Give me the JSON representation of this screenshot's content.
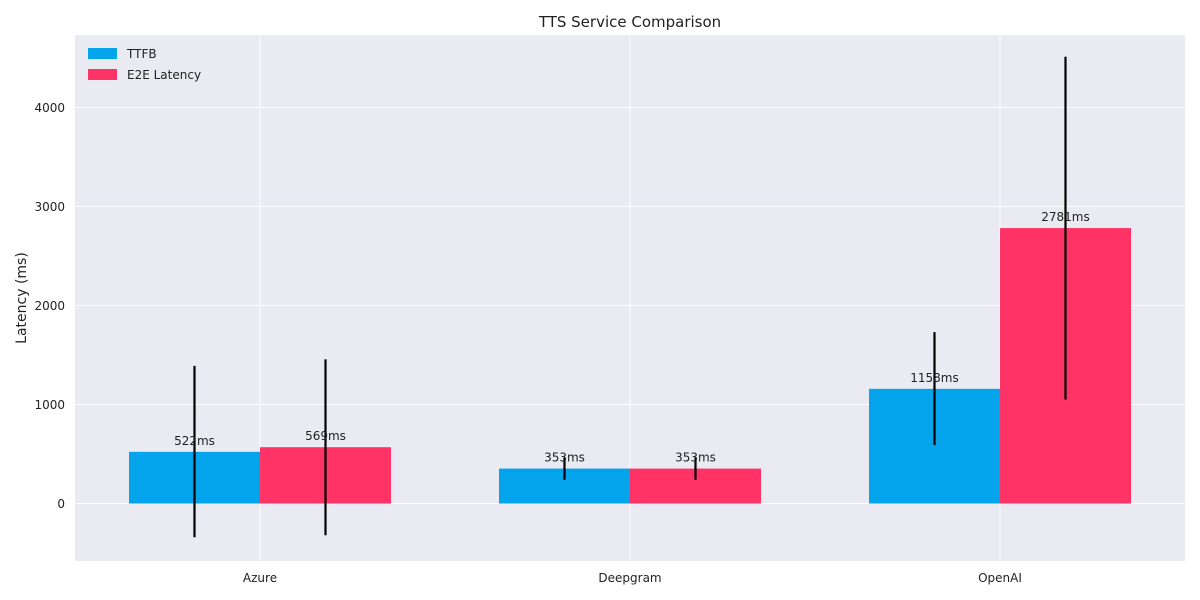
{
  "chart_data": {
    "type": "bar",
    "title": "TTS Service Comparison",
    "xlabel": "",
    "ylabel": "Latency (ms)",
    "categories": [
      "Azure",
      "Deepgram",
      "OpenAI"
    ],
    "series": [
      {
        "name": "TTFB",
        "color": "#03a4eb",
        "values": [
          522,
          353,
          1158
        ],
        "labels": [
          "522ms",
          "353ms",
          "1158ms"
        ],
        "err_low": [
          -340,
          240,
          590
        ],
        "err_high": [
          1390,
          465,
          1730
        ]
      },
      {
        "name": "E2E Latency",
        "color": "#ff3366",
        "values": [
          569,
          353,
          2781
        ],
        "labels": [
          "569ms",
          "353ms",
          "2781ms"
        ],
        "err_low": [
          -320,
          240,
          1050
        ],
        "err_high": [
          1455,
          465,
          4510
        ]
      }
    ],
    "ylim": [
      -580,
      4730
    ],
    "yticks": [
      0,
      1000,
      2000,
      3000,
      4000
    ],
    "ytick_labels": [
      "0",
      "1000",
      "2000",
      "3000",
      "4000"
    ],
    "grid": true,
    "legend_position": "top-left",
    "background_color": "#eaeaf2",
    "grid_color": "#ffffff",
    "errorbar_color": "#000000"
  }
}
